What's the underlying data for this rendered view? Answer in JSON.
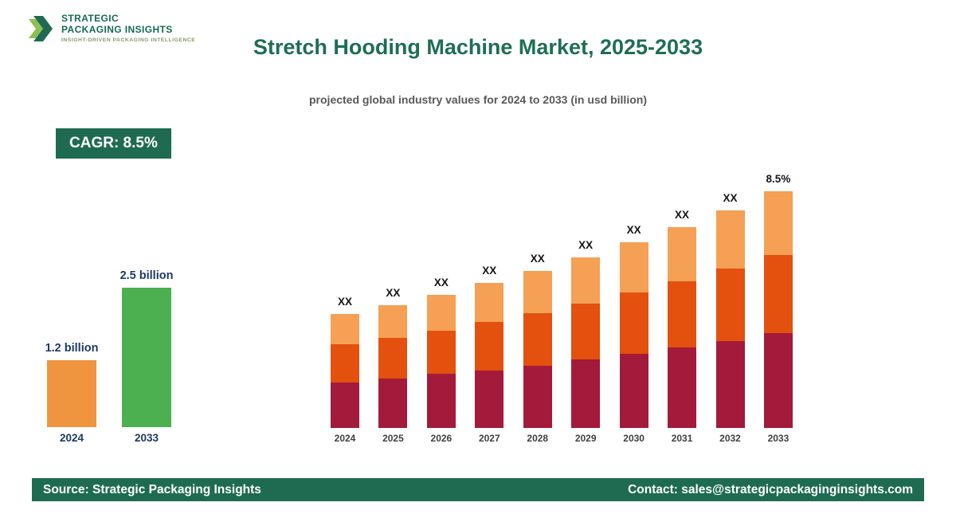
{
  "brand": {
    "name_line1": "STRATEGIC",
    "name_line2": "PACKAGING INSIGHTS",
    "tagline": "INSIGHT-DRIVEN PACKAGING INTELLIGENCE"
  },
  "header": {
    "title": "Stretch Hooding Machine Market, 2025-2033",
    "subtitle": "projected global industry values for 2024 to 2033 (in usd billion)"
  },
  "cagr_badge": "CAGR: 8.5%",
  "footer": {
    "source": "Source: Strategic Packaging Insights",
    "contact": "Contact: sales@strategicpackaginginsights.com"
  },
  "colors": {
    "brand_green_dark": "#1E6B52",
    "title_green": "#1E6E55",
    "label_navy": "#1F3864",
    "mini_bar_orange": "#F0953F",
    "mini_bar_green": "#4CAF50",
    "stack_bottom_maroon": "#A31A3B",
    "stack_middle_orange_red": "#E4500E",
    "stack_top_light_orange": "#F5A054"
  },
  "chart_data": [
    {
      "type": "bar",
      "name": "growth-summary",
      "unit": "usd billion",
      "categories": [
        "2024",
        "2033"
      ],
      "values": [
        1.2,
        2.5
      ],
      "labels": [
        "1.2 billion",
        "2.5 billion"
      ],
      "bar_colors": [
        "#F0953F",
        "#4CAF50"
      ],
      "ylim": [
        0,
        2.5
      ],
      "grid": false,
      "legend": "none"
    },
    {
      "type": "bar",
      "name": "stacked-projection",
      "stacked": true,
      "unit": "usd billion",
      "categories": [
        "2024",
        "2025",
        "2026",
        "2027",
        "2028",
        "2029",
        "2030",
        "2031",
        "2032",
        "2033"
      ],
      "bar_labels": [
        "XX",
        "XX",
        "XX",
        "XX",
        "XX",
        "XX",
        "XX",
        "XX",
        "XX",
        "8.5%"
      ],
      "totals": [
        1.2,
        1.3,
        1.41,
        1.53,
        1.66,
        1.8,
        1.96,
        2.12,
        2.3,
        2.5
      ],
      "series": [
        {
          "name": "bottom",
          "color": "#A31A3B",
          "values": [
            0.48,
            0.52,
            0.57,
            0.61,
            0.66,
            0.72,
            0.78,
            0.85,
            0.92,
            1.0
          ]
        },
        {
          "name": "middle",
          "color": "#E4500E",
          "values": [
            0.4,
            0.43,
            0.46,
            0.51,
            0.55,
            0.59,
            0.65,
            0.7,
            0.76,
            0.83
          ]
        },
        {
          "name": "top",
          "color": "#F5A054",
          "values": [
            0.32,
            0.35,
            0.38,
            0.41,
            0.45,
            0.49,
            0.53,
            0.57,
            0.62,
            0.67
          ]
        }
      ],
      "ylim": [
        0,
        2.5
      ],
      "grid": false,
      "legend": "none"
    }
  ]
}
